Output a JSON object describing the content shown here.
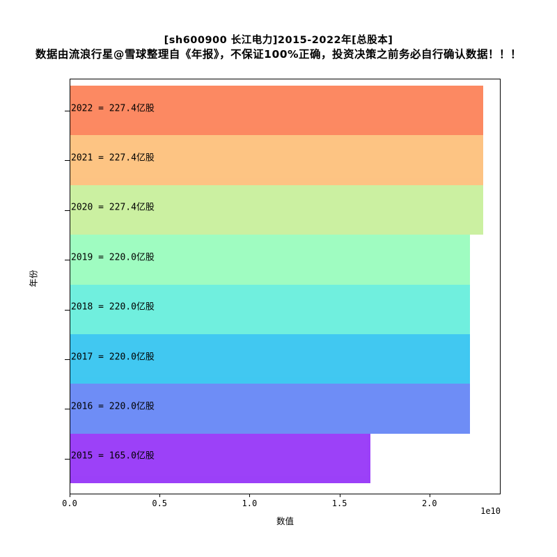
{
  "figure": {
    "title": "[sh600900 长江电力]2015-2022年[总股本]",
    "subtitle": "数据由流浪行星@雪球整理自《年报》，不保证100%正确，投资决策之前务必自行确认数据！！！"
  },
  "chart_data": {
    "type": "bar",
    "orientation": "horizontal",
    "title": "[sh600900 长江电力]2015-2022年[总股本]",
    "note": "数据由流浪行星@雪球整理自《年报》，不保证100%正确，投资决策之前务必自行确认数据！！！",
    "xlabel": "数值",
    "ylabel": "年份",
    "x_offset_text": "1e10",
    "xlim": [
      0,
      23877000000
    ],
    "grid": false,
    "legend": false,
    "x_ticks": [
      {
        "value": 0,
        "label": "0.0"
      },
      {
        "value": 5000000000,
        "label": "0.5"
      },
      {
        "value": 10000000000,
        "label": "1.0"
      },
      {
        "value": 15000000000,
        "label": "1.5"
      },
      {
        "value": 20000000000,
        "label": "2.0"
      }
    ],
    "categories": [
      "2022",
      "2021",
      "2020",
      "2019",
      "2018",
      "2017",
      "2016",
      "2015"
    ],
    "bars": [
      {
        "year": "2022",
        "value": 22740000000,
        "value_yi_shares": 227.4,
        "label": "2022 = 227.4亿股",
        "color": "#FC8962"
      },
      {
        "year": "2021",
        "value": 22740000000,
        "value_yi_shares": 227.4,
        "label": "2021 = 227.4亿股",
        "color": "#FDC483"
      },
      {
        "year": "2020",
        "value": 22740000000,
        "value_yi_shares": 227.4,
        "label": "2020 = 227.4亿股",
        "color": "#CBF0A1"
      },
      {
        "year": "2019",
        "value": 22000000000,
        "value_yi_shares": 220.0,
        "label": "2019 = 220.0亿股",
        "color": "#9FFCC1"
      },
      {
        "year": "2018",
        "value": 22000000000,
        "value_yi_shares": 220.0,
        "label": "2018 = 220.0亿股",
        "color": "#70EFDE"
      },
      {
        "year": "2017",
        "value": 22000000000,
        "value_yi_shares": 220.0,
        "label": "2017 = 220.0亿股",
        "color": "#41C8F1"
      },
      {
        "year": "2016",
        "value": 22000000000,
        "value_yi_shares": 220.0,
        "label": "2016 = 220.0亿股",
        "color": "#6E8DF6"
      },
      {
        "year": "2015",
        "value": 16500000000,
        "value_yi_shares": 165.0,
        "label": "2015 = 165.0亿股",
        "color": "#9C41F8"
      }
    ]
  }
}
